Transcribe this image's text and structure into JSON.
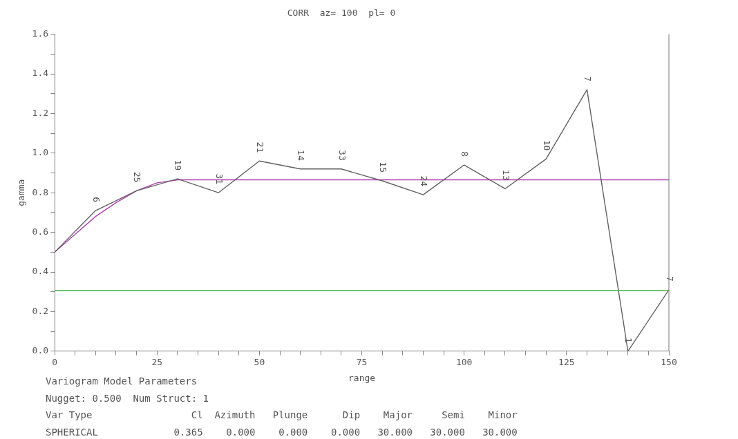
{
  "chart_data": {
    "type": "line",
    "title": "CORR  az= 100  pl= 0",
    "xlabel": "range",
    "ylabel": "gamma",
    "series": [
      {
        "color": "#606060",
        "x": [
          0,
          10,
          20,
          30,
          40,
          50,
          60,
          70,
          80,
          90,
          100,
          110,
          120,
          130,
          140,
          150
        ],
        "values": [
          0.5,
          0.71,
          0.81,
          0.87,
          0.8,
          0.96,
          0.92,
          0.92,
          0.86,
          0.79,
          0.94,
          0.82,
          0.97,
          1.32,
          0.0,
          0.31
        ]
      },
      {
        "color": "#b040b0",
        "x": [
          0,
          5,
          10,
          15,
          20,
          25,
          30,
          150
        ],
        "values": [
          0.5,
          0.59,
          0.68,
          0.75,
          0.81,
          0.85,
          0.865,
          0.865
        ]
      }
    ],
    "xlim": [
      0,
      150
    ],
    "xticks": [
      0,
      {
        "value": 5,
        "label": null
      },
      {
        "value": 10,
        "label": null
      },
      {
        "value": 15,
        "label": null
      },
      {
        "value": 20,
        "label": null
      },
      25,
      {
        "value": 30,
        "label": null
      },
      {
        "value": 35,
        "label": null
      },
      {
        "value": 40,
        "label": null
      },
      {
        "value": 45,
        "label": null
      },
      50,
      {
        "value": 55,
        "label": null
      },
      {
        "value": 60,
        "label": null
      },
      {
        "value": 65,
        "label": null
      },
      {
        "value": 70,
        "label": null
      },
      75,
      {
        "value": 80,
        "label": null
      },
      {
        "value": 85,
        "label": null
      },
      {
        "value": 90,
        "label": null
      },
      {
        "value": 95,
        "label": null
      },
      100,
      {
        "value": 105,
        "label": null
      },
      {
        "value": 110,
        "label": null
      },
      {
        "value": 115,
        "label": null
      },
      {
        "value": 120,
        "label": null
      },
      125,
      {
        "value": 130,
        "label": null
      },
      {
        "value": 135,
        "label": null
      },
      {
        "value": 140,
        "label": null
      },
      {
        "value": 145,
        "label": null
      },
      150
    ],
    "ylim": [
      0,
      1.6
    ],
    "yticks": [
      {
        "value": 0,
        "label": "0.0"
      },
      {
        "value": 0.1,
        "label": null
      },
      {
        "value": 0.2,
        "label": "0.2"
      },
      {
        "value": 0.3,
        "label": null
      },
      {
        "value": 0.4,
        "label": "0.4"
      },
      {
        "value": 0.5,
        "label": null
      },
      {
        "value": 0.6,
        "label": "0.6"
      },
      {
        "value": 0.7,
        "label": null
      },
      {
        "value": 0.8,
        "label": "0.8"
      },
      {
        "value": 0.9,
        "label": null
      },
      {
        "value": 1.0,
        "label": "1.0"
      },
      {
        "value": 1.1,
        "label": null
      },
      {
        "value": 1.2,
        "label": "1.2"
      },
      {
        "value": 1.3,
        "label": null
      },
      {
        "value": 1.4,
        "label": "1.4"
      },
      {
        "value": 1.5,
        "label": null
      },
      {
        "value": 1.6,
        "label": "1.6"
      }
    ],
    "ref_lines": [
      {
        "axis": "y",
        "value": 0.306,
        "color": "#40b040"
      }
    ],
    "marker": "none",
    "legend": false,
    "annotations": [
      {
        "text": "6",
        "x": 10,
        "y": 0.71
      },
      {
        "text": "25",
        "x": 20,
        "y": 0.81
      },
      {
        "text": "19",
        "x": 30,
        "y": 0.87
      },
      {
        "text": "31",
        "x": 40,
        "y": 0.8
      },
      {
        "text": "21",
        "x": 50,
        "y": 0.96
      },
      {
        "text": "14",
        "x": 60,
        "y": 0.92
      },
      {
        "text": "33",
        "x": 70,
        "y": 0.92
      },
      {
        "text": "15",
        "x": 80,
        "y": 0.86
      },
      {
        "text": "24",
        "x": 90,
        "y": 0.79
      },
      {
        "text": "8",
        "x": 100,
        "y": 0.94
      },
      {
        "text": "13",
        "x": 110,
        "y": 0.82
      },
      {
        "text": "10",
        "x": 120,
        "y": 0.97
      },
      {
        "text": "7",
        "x": 130,
        "y": 1.32
      },
      {
        "text": "1",
        "x": 140,
        "y": 0.0
      },
      {
        "text": "7",
        "x": 150,
        "y": 0.31
      },
      "Variogram Model Parameters",
      "Nugget: 0.500  Num Struct: 1",
      "Var Type                 Cl  Azimuth   Plunge      Dip    Major     Semi    Minor",
      "SPHERICAL             0.365    0.000    0.000    0.000   30.000   30.000   30.000"
    ]
  }
}
